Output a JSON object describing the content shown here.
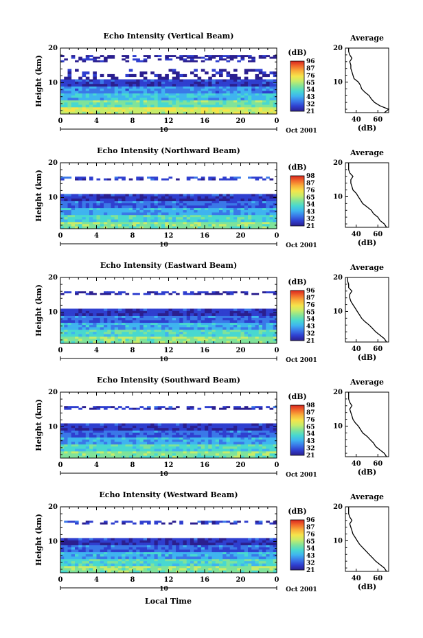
{
  "figure": {
    "xlabel": "Local Time",
    "date_label": "Oct 2001",
    "date_marker": "10",
    "colorbar_unit": "(dB)",
    "avg_title": "Average",
    "avg_xlabel": "(dB)",
    "ylabel": "Height (km)"
  },
  "colormap": [
    "#2b1f8f",
    "#2f3fcf",
    "#3a78e8",
    "#3fb4ef",
    "#48d8d0",
    "#7fe39a",
    "#c7ec6a",
    "#f5e44b",
    "#f9b13b",
    "#f26b2b",
    "#d8261f"
  ],
  "chart_data": [
    {
      "type": "heatmap",
      "title": "Echo Intensity (Vertical Beam)",
      "x_ticks": [
        "0",
        "4",
        "8",
        "12",
        "16",
        "20",
        "0"
      ],
      "xlim": [
        0,
        24
      ],
      "y_ticks": [
        "10",
        "20"
      ],
      "ylim": [
        1,
        20
      ],
      "colorbar_ticks": [
        "96",
        "87",
        "76",
        "65",
        "54",
        "43",
        "32",
        "21"
      ],
      "colorbar_range": [
        21,
        96
      ],
      "layers": [
        [
          1,
          3,
          70
        ],
        [
          3,
          5,
          58
        ],
        [
          5,
          7,
          48
        ],
        [
          7,
          9,
          40
        ],
        [
          9,
          11,
          30
        ],
        [
          11,
          14,
          24
        ],
        [
          16,
          17,
          25
        ],
        [
          17,
          18,
          23
        ]
      ],
      "average": {
        "x_ticks": [
          "40",
          "60"
        ],
        "xlim": [
          30,
          70
        ],
        "height": [
          1,
          2,
          3,
          4,
          5,
          6,
          7,
          8,
          9,
          10,
          11,
          12,
          13,
          14,
          15,
          16,
          17,
          18,
          19,
          20
        ],
        "db": [
          66,
          70,
          62,
          57,
          54,
          52,
          48,
          45,
          44,
          42,
          38,
          37,
          36,
          35,
          35,
          34,
          36,
          34,
          33,
          33
        ]
      }
    },
    {
      "type": "heatmap",
      "title": "Echo Intensity (Northward Beam)",
      "x_ticks": [
        "0",
        "4",
        "8",
        "12",
        "16",
        "20",
        "0"
      ],
      "xlim": [
        0,
        24
      ],
      "y_ticks": [
        "10",
        "20"
      ],
      "ylim": [
        1,
        20
      ],
      "colorbar_ticks": [
        "98",
        "87",
        "76",
        "65",
        "54",
        "43",
        "32",
        "21"
      ],
      "colorbar_range": [
        21,
        98
      ],
      "layers": [
        [
          1,
          3,
          62
        ],
        [
          3,
          5,
          54
        ],
        [
          5,
          7,
          45
        ],
        [
          7,
          9,
          36
        ],
        [
          9,
          11,
          28
        ],
        [
          15,
          16,
          30
        ]
      ],
      "average": {
        "x_ticks": [
          "40",
          "60"
        ],
        "xlim": [
          30,
          70
        ],
        "height": [
          1,
          2,
          3,
          4,
          5,
          6,
          7,
          8,
          9,
          10,
          11,
          12,
          13,
          14,
          15,
          16,
          17,
          18,
          19,
          20
        ],
        "db": [
          68,
          66,
          62,
          60,
          56,
          54,
          50,
          46,
          44,
          42,
          40,
          37,
          36,
          35,
          35,
          37,
          34,
          33,
          33,
          33
        ]
      }
    },
    {
      "type": "heatmap",
      "title": "Echo Intensity (Eastward Beam)",
      "x_ticks": [
        "0",
        "4",
        "8",
        "12",
        "16",
        "20",
        "0"
      ],
      "xlim": [
        0,
        24
      ],
      "y_ticks": [
        "10",
        "20"
      ],
      "ylim": [
        1,
        20
      ],
      "colorbar_ticks": [
        "96",
        "87",
        "76",
        "65",
        "54",
        "43",
        "32",
        "21"
      ],
      "colorbar_range": [
        21,
        96
      ],
      "layers": [
        [
          1,
          3,
          62
        ],
        [
          3,
          5,
          54
        ],
        [
          5,
          7,
          45
        ],
        [
          7,
          9,
          36
        ],
        [
          9,
          11,
          28
        ],
        [
          15,
          16,
          26
        ]
      ],
      "average": {
        "x_ticks": [
          "40",
          "60"
        ],
        "xlim": [
          30,
          70
        ],
        "height": [
          1,
          2,
          3,
          4,
          5,
          6,
          7,
          8,
          9,
          10,
          11,
          12,
          13,
          14,
          15,
          16,
          17,
          18,
          19,
          20
        ],
        "db": [
          68,
          66,
          62,
          58,
          55,
          52,
          48,
          45,
          43,
          41,
          39,
          37,
          35,
          34,
          34,
          36,
          33,
          33,
          32,
          32
        ]
      }
    },
    {
      "type": "heatmap",
      "title": "Echo Intensity (Southward Beam)",
      "x_ticks": [
        "0",
        "4",
        "8",
        "12",
        "16",
        "20",
        "0"
      ],
      "xlim": [
        0,
        24
      ],
      "y_ticks": [
        "10",
        "20"
      ],
      "ylim": [
        1,
        20
      ],
      "colorbar_ticks": [
        "98",
        "87",
        "76",
        "65",
        "54",
        "43",
        "32",
        "21"
      ],
      "colorbar_range": [
        21,
        98
      ],
      "layers": [
        [
          1,
          3,
          62
        ],
        [
          3,
          5,
          54
        ],
        [
          5,
          7,
          45
        ],
        [
          7,
          9,
          36
        ],
        [
          9,
          11,
          28
        ],
        [
          15,
          16,
          28
        ]
      ],
      "average": {
        "x_ticks": [
          "40",
          "60"
        ],
        "xlim": [
          30,
          70
        ],
        "height": [
          1,
          2,
          3,
          4,
          5,
          6,
          7,
          8,
          9,
          10,
          11,
          12,
          13,
          14,
          15,
          16,
          17,
          18,
          19,
          20
        ],
        "db": [
          68,
          66,
          62,
          58,
          56,
          53,
          50,
          46,
          44,
          42,
          39,
          37,
          36,
          35,
          34,
          36,
          34,
          33,
          33,
          33
        ]
      }
    },
    {
      "type": "heatmap",
      "title": "Echo Intensity (Westward Beam)",
      "x_ticks": [
        "0",
        "4",
        "8",
        "12",
        "16",
        "20",
        "0"
      ],
      "xlim": [
        0,
        24
      ],
      "y_ticks": [
        "10",
        "20"
      ],
      "ylim": [
        1,
        20
      ],
      "colorbar_ticks": [
        "96",
        "87",
        "76",
        "65",
        "54",
        "43",
        "32",
        "21"
      ],
      "colorbar_range": [
        21,
        96
      ],
      "layers": [
        [
          1,
          3,
          62
        ],
        [
          3,
          5,
          54
        ],
        [
          5,
          7,
          45
        ],
        [
          7,
          9,
          36
        ],
        [
          9,
          11,
          28
        ],
        [
          15,
          16,
          28
        ]
      ],
      "average": {
        "x_ticks": [
          "40",
          "60"
        ],
        "xlim": [
          30,
          70
        ],
        "height": [
          1,
          2,
          3,
          4,
          5,
          6,
          7,
          8,
          9,
          10,
          11,
          12,
          13,
          14,
          15,
          16,
          17,
          18,
          19,
          20
        ],
        "db": [
          68,
          66,
          62,
          58,
          55,
          52,
          49,
          46,
          43,
          41,
          39,
          37,
          36,
          35,
          34,
          36,
          34,
          33,
          33,
          33
        ]
      }
    }
  ]
}
